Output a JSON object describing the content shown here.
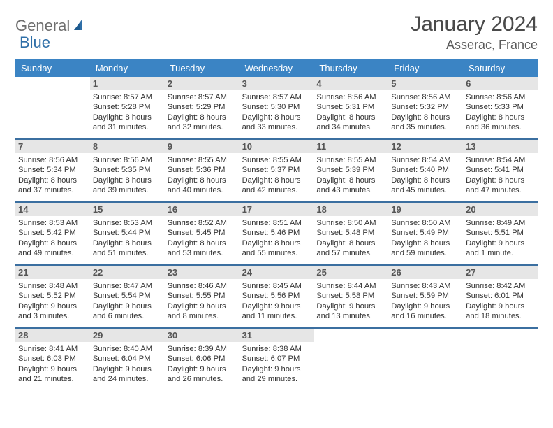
{
  "logo": {
    "part1": "General",
    "part2": "Blue"
  },
  "title": "January 2024",
  "location": "Asserac, France",
  "colors": {
    "header_bg": "#3b84c4",
    "header_text": "#ffffff",
    "date_bar_bg": "#e6e6e6",
    "week_border": "#3b6fa0",
    "logo_gray": "#6e6e6e",
    "logo_blue": "#2f6fa8"
  },
  "dayNames": [
    "Sunday",
    "Monday",
    "Tuesday",
    "Wednesday",
    "Thursday",
    "Friday",
    "Saturday"
  ],
  "weeks": [
    [
      {
        "date": "",
        "sunrise": "",
        "sunset": "",
        "day1": "",
        "day2": ""
      },
      {
        "date": "1",
        "sunrise": "Sunrise: 8:57 AM",
        "sunset": "Sunset: 5:28 PM",
        "day1": "Daylight: 8 hours",
        "day2": "and 31 minutes."
      },
      {
        "date": "2",
        "sunrise": "Sunrise: 8:57 AM",
        "sunset": "Sunset: 5:29 PM",
        "day1": "Daylight: 8 hours",
        "day2": "and 32 minutes."
      },
      {
        "date": "3",
        "sunrise": "Sunrise: 8:57 AM",
        "sunset": "Sunset: 5:30 PM",
        "day1": "Daylight: 8 hours",
        "day2": "and 33 minutes."
      },
      {
        "date": "4",
        "sunrise": "Sunrise: 8:56 AM",
        "sunset": "Sunset: 5:31 PM",
        "day1": "Daylight: 8 hours",
        "day2": "and 34 minutes."
      },
      {
        "date": "5",
        "sunrise": "Sunrise: 8:56 AM",
        "sunset": "Sunset: 5:32 PM",
        "day1": "Daylight: 8 hours",
        "day2": "and 35 minutes."
      },
      {
        "date": "6",
        "sunrise": "Sunrise: 8:56 AM",
        "sunset": "Sunset: 5:33 PM",
        "day1": "Daylight: 8 hours",
        "day2": "and 36 minutes."
      }
    ],
    [
      {
        "date": "7",
        "sunrise": "Sunrise: 8:56 AM",
        "sunset": "Sunset: 5:34 PM",
        "day1": "Daylight: 8 hours",
        "day2": "and 37 minutes."
      },
      {
        "date": "8",
        "sunrise": "Sunrise: 8:56 AM",
        "sunset": "Sunset: 5:35 PM",
        "day1": "Daylight: 8 hours",
        "day2": "and 39 minutes."
      },
      {
        "date": "9",
        "sunrise": "Sunrise: 8:55 AM",
        "sunset": "Sunset: 5:36 PM",
        "day1": "Daylight: 8 hours",
        "day2": "and 40 minutes."
      },
      {
        "date": "10",
        "sunrise": "Sunrise: 8:55 AM",
        "sunset": "Sunset: 5:37 PM",
        "day1": "Daylight: 8 hours",
        "day2": "and 42 minutes."
      },
      {
        "date": "11",
        "sunrise": "Sunrise: 8:55 AM",
        "sunset": "Sunset: 5:39 PM",
        "day1": "Daylight: 8 hours",
        "day2": "and 43 minutes."
      },
      {
        "date": "12",
        "sunrise": "Sunrise: 8:54 AM",
        "sunset": "Sunset: 5:40 PM",
        "day1": "Daylight: 8 hours",
        "day2": "and 45 minutes."
      },
      {
        "date": "13",
        "sunrise": "Sunrise: 8:54 AM",
        "sunset": "Sunset: 5:41 PM",
        "day1": "Daylight: 8 hours",
        "day2": "and 47 minutes."
      }
    ],
    [
      {
        "date": "14",
        "sunrise": "Sunrise: 8:53 AM",
        "sunset": "Sunset: 5:42 PM",
        "day1": "Daylight: 8 hours",
        "day2": "and 49 minutes."
      },
      {
        "date": "15",
        "sunrise": "Sunrise: 8:53 AM",
        "sunset": "Sunset: 5:44 PM",
        "day1": "Daylight: 8 hours",
        "day2": "and 51 minutes."
      },
      {
        "date": "16",
        "sunrise": "Sunrise: 8:52 AM",
        "sunset": "Sunset: 5:45 PM",
        "day1": "Daylight: 8 hours",
        "day2": "and 53 minutes."
      },
      {
        "date": "17",
        "sunrise": "Sunrise: 8:51 AM",
        "sunset": "Sunset: 5:46 PM",
        "day1": "Daylight: 8 hours",
        "day2": "and 55 minutes."
      },
      {
        "date": "18",
        "sunrise": "Sunrise: 8:50 AM",
        "sunset": "Sunset: 5:48 PM",
        "day1": "Daylight: 8 hours",
        "day2": "and 57 minutes."
      },
      {
        "date": "19",
        "sunrise": "Sunrise: 8:50 AM",
        "sunset": "Sunset: 5:49 PM",
        "day1": "Daylight: 8 hours",
        "day2": "and 59 minutes."
      },
      {
        "date": "20",
        "sunrise": "Sunrise: 8:49 AM",
        "sunset": "Sunset: 5:51 PM",
        "day1": "Daylight: 9 hours",
        "day2": "and 1 minute."
      }
    ],
    [
      {
        "date": "21",
        "sunrise": "Sunrise: 8:48 AM",
        "sunset": "Sunset: 5:52 PM",
        "day1": "Daylight: 9 hours",
        "day2": "and 3 minutes."
      },
      {
        "date": "22",
        "sunrise": "Sunrise: 8:47 AM",
        "sunset": "Sunset: 5:54 PM",
        "day1": "Daylight: 9 hours",
        "day2": "and 6 minutes."
      },
      {
        "date": "23",
        "sunrise": "Sunrise: 8:46 AM",
        "sunset": "Sunset: 5:55 PM",
        "day1": "Daylight: 9 hours",
        "day2": "and 8 minutes."
      },
      {
        "date": "24",
        "sunrise": "Sunrise: 8:45 AM",
        "sunset": "Sunset: 5:56 PM",
        "day1": "Daylight: 9 hours",
        "day2": "and 11 minutes."
      },
      {
        "date": "25",
        "sunrise": "Sunrise: 8:44 AM",
        "sunset": "Sunset: 5:58 PM",
        "day1": "Daylight: 9 hours",
        "day2": "and 13 minutes."
      },
      {
        "date": "26",
        "sunrise": "Sunrise: 8:43 AM",
        "sunset": "Sunset: 5:59 PM",
        "day1": "Daylight: 9 hours",
        "day2": "and 16 minutes."
      },
      {
        "date": "27",
        "sunrise": "Sunrise: 8:42 AM",
        "sunset": "Sunset: 6:01 PM",
        "day1": "Daylight: 9 hours",
        "day2": "and 18 minutes."
      }
    ],
    [
      {
        "date": "28",
        "sunrise": "Sunrise: 8:41 AM",
        "sunset": "Sunset: 6:03 PM",
        "day1": "Daylight: 9 hours",
        "day2": "and 21 minutes."
      },
      {
        "date": "29",
        "sunrise": "Sunrise: 8:40 AM",
        "sunset": "Sunset: 6:04 PM",
        "day1": "Daylight: 9 hours",
        "day2": "and 24 minutes."
      },
      {
        "date": "30",
        "sunrise": "Sunrise: 8:39 AM",
        "sunset": "Sunset: 6:06 PM",
        "day1": "Daylight: 9 hours",
        "day2": "and 26 minutes."
      },
      {
        "date": "31",
        "sunrise": "Sunrise: 8:38 AM",
        "sunset": "Sunset: 6:07 PM",
        "day1": "Daylight: 9 hours",
        "day2": "and 29 minutes."
      },
      {
        "date": "",
        "sunrise": "",
        "sunset": "",
        "day1": "",
        "day2": ""
      },
      {
        "date": "",
        "sunrise": "",
        "sunset": "",
        "day1": "",
        "day2": ""
      },
      {
        "date": "",
        "sunrise": "",
        "sunset": "",
        "day1": "",
        "day2": ""
      }
    ]
  ]
}
